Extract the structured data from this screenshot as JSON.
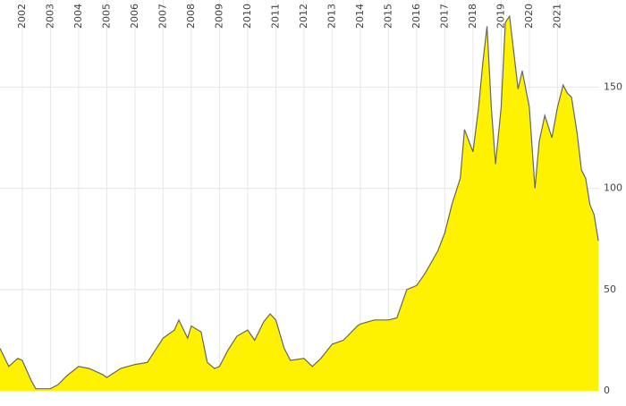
{
  "chart_data": {
    "type": "area",
    "color": "#fff200",
    "line_color": "#666666",
    "grid": true,
    "x": [
      2001.21,
      2001.52,
      2001.84,
      2002.0,
      2002.32,
      2002.48,
      2003.0,
      2003.27,
      2003.59,
      2004.0,
      2004.38,
      2004.86,
      2005.0,
      2005.49,
      2006.0,
      2006.44,
      2007.0,
      2007.4,
      2007.56,
      2007.87,
      2008.0,
      2008.35,
      2008.57,
      2008.83,
      2009.0,
      2009.3,
      2009.62,
      2010.0,
      2010.25,
      2010.57,
      2010.8,
      2011.0,
      2011.3,
      2011.52,
      2012.0,
      2012.3,
      2012.6,
      2013.0,
      2013.4,
      2013.9,
      2014.0,
      2014.5,
      2015.0,
      2015.3,
      2015.65,
      2016.0,
      2016.3,
      2016.75,
      2017.0,
      2017.25,
      2017.55,
      2017.7,
      2018.0,
      2018.2,
      2018.35,
      2018.5,
      2018.65,
      2018.8,
      2019.0,
      2019.15,
      2019.3,
      2019.45,
      2019.6,
      2019.75,
      2020.0,
      2020.2,
      2020.35,
      2020.55,
      2020.8,
      2021.0,
      2021.2,
      2021.35,
      2021.5,
      2021.7,
      2021.85,
      2022.0,
      2022.15,
      2022.3,
      2022.45
    ],
    "values": [
      21,
      12,
      16,
      15,
      5,
      1,
      1,
      3,
      7.5,
      12,
      11,
      8,
      6.6,
      11,
      13,
      14,
      26,
      30,
      35,
      26,
      32,
      29,
      14,
      11,
      12,
      20,
      27,
      30,
      25,
      34,
      38,
      35,
      21,
      15,
      16,
      12,
      16,
      23,
      25,
      32,
      33,
      35,
      35,
      36,
      50,
      52,
      58,
      69,
      78,
      92,
      105,
      129,
      118,
      140,
      162,
      180,
      140,
      112,
      140,
      182,
      185,
      167,
      149,
      158,
      140,
      100,
      123,
      136,
      125,
      140,
      151,
      147,
      145,
      127,
      109,
      105,
      92,
      87,
      74
    ],
    "xlim": [
      2001.21,
      2022.48
    ],
    "xticks": [
      2002,
      2003,
      2004,
      2005,
      2006,
      2007,
      2008,
      2009,
      2010,
      2011,
      2012,
      2013,
      2014,
      2015,
      2016,
      2017,
      2018,
      2019,
      2020,
      2021
    ],
    "ylim": [
      0,
      193
    ],
    "yticks": [
      0,
      50,
      100,
      150
    ]
  }
}
